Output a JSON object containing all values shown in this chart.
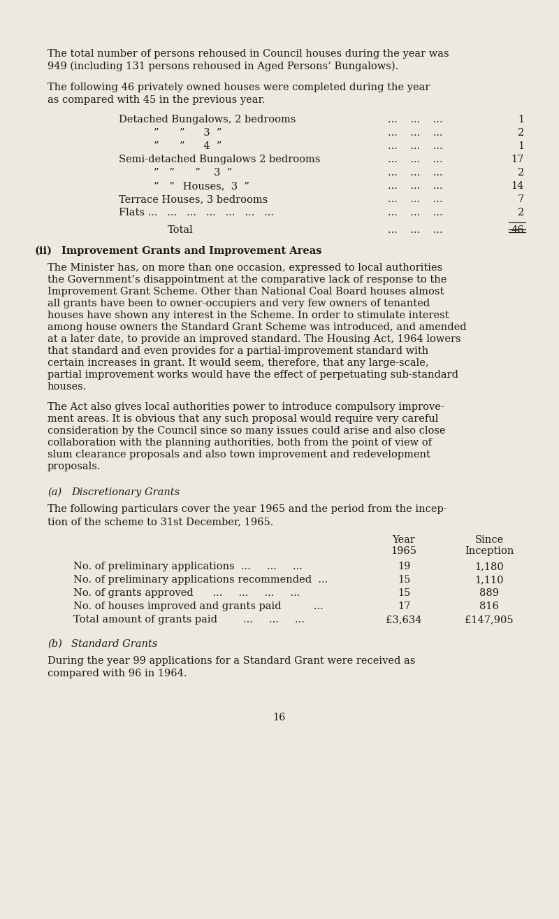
{
  "bg_color": "#ede9e0",
  "text_color": "#1a1a1a",
  "fig_width": 8.0,
  "fig_height": 13.14,
  "dpi": 100,
  "body_font": 10.5,
  "serif": "DejaVu Serif",
  "para1_lines": [
    "The total number of persons rehoused in Council houses during the year was",
    "949 (including 131 persons rehoused in Aged Persons’ Bungalows)."
  ],
  "para2_lines": [
    "The following 46 privately owned houses were completed during the year",
    "as compared with 45 in the previous year."
  ],
  "table1": [
    {
      "label": "Detached Bungalows, 2 bedrooms",
      "indent": 0,
      "value": "1"
    },
    {
      "label": "”    ”    3  ”",
      "indent": 1,
      "value": "2"
    },
    {
      "label": "”    ”    4  ”",
      "indent": 1,
      "value": "1"
    },
    {
      "label": "Semi-detached Bungalows 2 bedrooms",
      "indent": 0,
      "value": "17"
    },
    {
      "label": "”  ”    ”   3  ”",
      "indent": 1,
      "value": "2"
    },
    {
      "label": "”  ”  Houses,  3  ”",
      "indent": 1,
      "value": "14"
    },
    {
      "label": "Terrace Houses, 3 bedrooms",
      "indent": 0,
      "value": "7"
    },
    {
      "label": "Flats ...   ...   ...   ...   ...   ...   ...",
      "indent": 0,
      "value": "2"
    }
  ],
  "total_value": "46",
  "sec_ii_label": "(ii)",
  "sec_ii_title": "Improvement Grants and Improvement Areas",
  "para_ii1_lines": [
    "The Minister has, on more than one occasion, expressed to local authorities",
    "the Government’s disappointment at the comparative lack of response to the",
    "Improvement Grant Scheme. Other than National Coal Board houses almost",
    "all grants have been to owner-occupiers and very few owners of tenanted",
    "houses have shown any interest in the Scheme. In order to stimulate interest",
    "among house owners the Standard Grant Scheme was introduced, and amended",
    "at a later date, to provide an improved standard. The Housing Act, 1964 lowers",
    "that standard and even provides for a partial-improvement standard with",
    "certain increases in grant. It would seem, therefore, that any large-scale,",
    "partial improvement works would have the effect of perpetuating sub-standard",
    "houses."
  ],
  "para_ii2_lines": [
    "The Act also gives local authorities power to introduce compulsory improve-",
    "ment areas. It is obvious that any such proposal would require very careful",
    "consideration by the Council since so many issues could arise and also close",
    "collaboration with the planning authorities, both from the point of view of",
    "slum clearance proposals and also town improvement and redevelopment",
    "proposals."
  ],
  "sec_a_label": "(a)",
  "sec_a_title": "Discretionary Grants",
  "para_a_lines": [
    "The following particulars cover the year 1965 and the period from the incep-",
    "tion of the scheme to 31st December, 1965."
  ],
  "tbl_a_col1_hdr": [
    "Year",
    "1965"
  ],
  "tbl_a_col2_hdr": [
    "Since",
    "Inception"
  ],
  "tbl_a_rows": [
    {
      "label": "No. of preliminary applications  ...     ...     ...",
      "v1": "19",
      "v2": "1,180"
    },
    {
      "label": "No. of preliminary applications recommended  ...",
      "v1": "15",
      "v2": "1,110"
    },
    {
      "label": "No. of grants approved      ...     ...     ...     ...",
      "v1": "15",
      "v2": "889"
    },
    {
      "label": "No. of houses improved and grants paid          ...",
      "v1": "17",
      "v2": "816"
    },
    {
      "label": "Total amount of grants paid        ...     ...     ...",
      "v1": "£3,634",
      "v2": "£147,905"
    }
  ],
  "sec_b_label": "(b)",
  "sec_b_title": "Standard Grants",
  "para_b_lines": [
    "During the year 99 applications for a Standard Grant were received as",
    "compared with 96 in 1964."
  ],
  "page_num": "16"
}
